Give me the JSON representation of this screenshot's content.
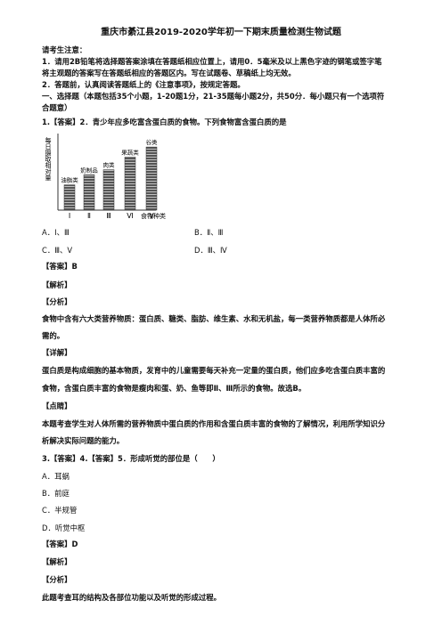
{
  "header": {
    "title": "重庆市綦江县2019-2020学年初一下期末质量检测生物试题"
  },
  "lines": [
    "请考生注意：",
    "1．请用2B铅笔将选择题答案涂填在答题纸相应位置上，请用0．5毫米及以上黑色字迹的钢笔或签字笔",
    "将主观题的答案写在答题纸相应的答题区内。写在试题卷、草稿纸上均无效。",
    "2．答题前，认真阅读答题纸上的《注意事项》，按规定答题。",
    "一、选择题（本题包括35个小题，1-20题1分，21-35题每小题2分，共50分．每小题只有一个选项符",
    "合题意）",
    "1.【答案】2．青少年应多吃富含蛋白质的食物。下列食物富含蛋白质的是",
    "A．Ⅰ、Ⅲ",
    "B．Ⅱ、Ⅲ",
    "C．Ⅲ、Ⅴ",
    "D．Ⅲ、Ⅳ",
    "【答案】B",
    "【解析】",
    "【分析】",
    "食物中含有六大类营养物质：蛋白质、糖类、脂肪、维生素、水和无机盐，每一类营养物质都是人体所必",
    "需的。",
    "【详解】",
    "蛋白质是构成细胞的基本物质，发育中的儿童需要每天补充一定量的蛋白质，他们应多吃含蛋白质丰富的",
    "食物，含蛋白质丰富的食物是瘦肉和蛋、奶、鱼等即Ⅱ、Ⅲ所示的食物。故选B。",
    "【点睛】",
    "本题考查学生对人体所需的营养物质中蛋白质的作用和含蛋白质丰富的食物的了解情况，利用所学知识分",
    "析解决实际问题的能力。",
    "3.【答案】4.【答案】5．形成听觉的部位是（　　）",
    "A．耳蜗",
    "B．前庭",
    "C．半规管",
    "D．听觉中枢",
    "【答案】D",
    "【解析】",
    "【分析】",
    "此题考查耳的结构及各部位功能以及听觉的形成过程。"
  ],
  "figure": {
    "type": "bar",
    "ylabel": "每日摄取相对量",
    "xlabel": "食物种类",
    "categories": [
      "Ⅰ",
      "Ⅱ",
      "Ⅲ",
      "Ⅵ",
      "Ⅴ"
    ],
    "bar_labels": [
      "油脂类",
      "奶制品",
      "肉类",
      "果蔬类",
      "谷类"
    ],
    "values": [
      2,
      2.8,
      3.2,
      4.2,
      5
    ],
    "ylim": [
      0,
      5.5
    ]
  }
}
